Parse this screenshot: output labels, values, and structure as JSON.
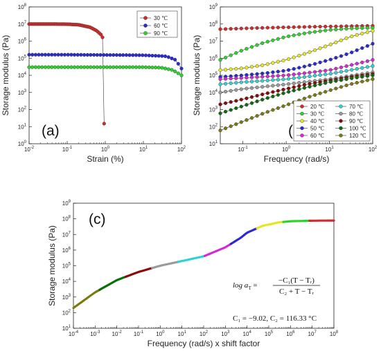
{
  "chart_data": [
    {
      "id": "a",
      "type": "line",
      "panel_label": "(a)",
      "xlabel": "Strain (%)",
      "ylabel": "Storage modulus (Pa)",
      "xscale": "log",
      "yscale": "log",
      "xlim": [
        0.01,
        100
      ],
      "ylim": [
        1,
        100000000
      ],
      "x_ticks": [
        "10-2",
        "10-1",
        "100",
        "101",
        "102"
      ],
      "y_ticks": [
        "100",
        "101",
        "102",
        "103",
        "104",
        "105",
        "106",
        "107",
        "108"
      ],
      "legend_position": "top-right",
      "series": [
        {
          "name": "30 ℃",
          "color": "#d42a2a",
          "marker": "circle",
          "points": [
            [
              0.01,
              10000000.0
            ],
            [
              0.03,
              10000000.0
            ],
            [
              0.1,
              9800000.0
            ],
            [
              0.2,
              9000000.0
            ],
            [
              0.4,
              6500000.0
            ],
            [
              0.6,
              4000000.0
            ],
            [
              0.8,
              2200000.0
            ],
            [
              0.9,
              1200000.0
            ],
            [
              0.92,
              400000.0
            ],
            [
              0.93,
              15
            ]
          ]
        },
        {
          "name": "60 ℃",
          "color": "#2a2ad4",
          "marker": "circle",
          "points": [
            [
              0.01,
              160000.0
            ],
            [
              0.1,
              160000.0
            ],
            [
              1,
              155000.0
            ],
            [
              10,
              150000.0
            ],
            [
              40,
              130000.0
            ],
            [
              70,
              80000.0
            ],
            [
              100,
              25000.0
            ]
          ]
        },
        {
          "name": "90 ℃",
          "color": "#2ad42a",
          "marker": "circle",
          "points": [
            [
              0.01,
              30000.0
            ],
            [
              0.1,
              30000.0
            ],
            [
              1,
              30000.0
            ],
            [
              10,
              30000.0
            ],
            [
              30,
              28000.0
            ],
            [
              60,
              20000.0
            ],
            [
              100,
              10000.0
            ]
          ]
        }
      ]
    },
    {
      "id": "b",
      "type": "line",
      "panel_label": "(b)",
      "xlabel": "Frequency (rad/s)",
      "ylabel": "Storage modulus (Pa)",
      "xscale": "log",
      "yscale": "log",
      "xlim": [
        0.03,
        100
      ],
      "ylim": [
        10,
        1000000000
      ],
      "x_ticks": [
        "10-1",
        "100",
        "101",
        "102"
      ],
      "y_ticks": [
        "101",
        "102",
        "103",
        "104",
        "105",
        "106",
        "107",
        "108",
        "109"
      ],
      "legend_position": "bottom-right",
      "series": [
        {
          "name": "20 ℃",
          "color": "#d42a2a",
          "points": [
            [
              0.03,
              50000000.0
            ],
            [
              0.3,
              60000000.0
            ],
            [
              3,
              68000000.0
            ],
            [
              30,
              75000000.0
            ],
            [
              100,
              78000000.0
            ]
          ]
        },
        {
          "name": "30 ℃",
          "color": "#2ad42a",
          "points": [
            [
              0.03,
              800000.0
            ],
            [
              0.1,
              3000000.0
            ],
            [
              0.3,
              8000000.0
            ],
            [
              1,
              18000000.0
            ],
            [
              3,
              30000000.0
            ],
            [
              10,
              45000000.0
            ],
            [
              30,
              55000000.0
            ],
            [
              100,
              60000000.0
            ]
          ]
        },
        {
          "name": "40 ℃",
          "color": "#e6e620",
          "points": [
            [
              0.03,
              200000.0
            ],
            [
              0.1,
              260000.0
            ],
            [
              0.3,
              400000.0
            ],
            [
              1,
              800000.0
            ],
            [
              3,
              2000000.0
            ],
            [
              10,
              6000000.0
            ],
            [
              30,
              18000000.0
            ],
            [
              100,
              40000000.0
            ]
          ]
        },
        {
          "name": "50 ℃",
          "color": "#2a2ad4",
          "points": [
            [
              0.03,
              80000.0
            ],
            [
              0.1,
              100000.0
            ],
            [
              0.3,
              130000.0
            ],
            [
              1,
              190000.0
            ],
            [
              3,
              350000.0
            ],
            [
              10,
              800000.0
            ],
            [
              30,
              2000000.0
            ],
            [
              100,
              7000000.0
            ]
          ]
        },
        {
          "name": "60 ℃",
          "color": "#d42ad4",
          "points": [
            [
              0.03,
              60000.0
            ],
            [
              0.1,
              70000.0
            ],
            [
              1,
              100000.0
            ],
            [
              10,
              200000.0
            ],
            [
              100,
              800000.0
            ]
          ]
        },
        {
          "name": "70 ℃",
          "color": "#2ad4d4",
          "points": [
            [
              0.03,
              30000.0
            ],
            [
              0.1,
              40000.0
            ],
            [
              1,
              60000.0
            ],
            [
              10,
              120000.0
            ],
            [
              100,
              350000.0
            ]
          ]
        },
        {
          "name": "80 ℃",
          "color": "#9a9a9a",
          "points": [
            [
              0.03,
              10000.0
            ],
            [
              0.1,
              16000.0
            ],
            [
              1,
              30000.0
            ],
            [
              10,
              60000.0
            ],
            [
              100,
              150000.0
            ]
          ]
        },
        {
          "name": "90 ℃",
          "color": "#8b0a0a",
          "points": [
            [
              0.03,
              2000.0
            ],
            [
              0.1,
              4000.0
            ],
            [
              0.3,
              8000.0
            ],
            [
              1,
              16000.0
            ],
            [
              3,
              30000.0
            ],
            [
              10,
              50000.0
            ],
            [
              30,
              80000.0
            ],
            [
              100,
              120000.0
            ]
          ]
        },
        {
          "name": "100 ℃",
          "color": "#0a6e0a",
          "points": [
            [
              0.03,
              600.0
            ],
            [
              0.1,
              1600.0
            ],
            [
              0.3,
              4000.0
            ],
            [
              1,
              10000.0
            ],
            [
              3,
              20000.0
            ],
            [
              10,
              40000.0
            ],
            [
              30,
              65000.0
            ],
            [
              100,
              100000.0
            ]
          ]
        },
        {
          "name": "120 ℃",
          "color": "#7a7a10",
          "points": [
            [
              0.03,
              60
            ],
            [
              0.1,
              200.0
            ],
            [
              0.3,
              600.0
            ],
            [
              1,
              1800.0
            ],
            [
              3,
              5000.0
            ],
            [
              10,
              13000.0
            ],
            [
              30,
              30000.0
            ],
            [
              100,
              60000.0
            ]
          ]
        }
      ]
    },
    {
      "id": "c",
      "type": "line",
      "panel_label": "(c)",
      "xlabel": "Frequency (rad/s) x shift factor",
      "ylabel": "Storage modulus (Pa)",
      "xscale": "log",
      "yscale": "log",
      "xlim": [
        0.0001,
        100000000
      ],
      "ylim": [
        10,
        1000000000
      ],
      "x_ticks": [
        "10-4",
        "10-3",
        "10-2",
        "10-1",
        "100",
        "101",
        "102",
        "103",
        "104",
        "105",
        "106",
        "107",
        "108"
      ],
      "y_ticks": [
        "101",
        "102",
        "103",
        "104",
        "105",
        "106",
        "107",
        "108",
        "109"
      ],
      "master_curve_colors": [
        "#7a7a10",
        "#0a6e0a",
        "#8b0a0a",
        "#9a9a9a",
        "#2ad4d4",
        "#d42ad4",
        "#2a2ad4",
        "#e6e620",
        "#2ad42a",
        "#d42a2a"
      ],
      "master_curve_points": [
        [
          0.0001,
          200
        ],
        [
          0.001,
          2000
        ],
        [
          0.01,
          12000.0
        ],
        [
          0.1,
          40000.0
        ],
        [
          1,
          100000.0
        ],
        [
          10,
          200000.0
        ],
        [
          100,
          400000.0
        ],
        [
          1000,
          1500000.0
        ],
        [
          5000,
          6000000.0
        ],
        [
          10000,
          13000000.0
        ],
        [
          50000,
          35000000.0
        ],
        [
          300000,
          60000000.0
        ],
        [
          1000000,
          70000000.0
        ],
        [
          10000000,
          76000000.0
        ],
        [
          100000000,
          78000000.0
        ]
      ],
      "equation": {
        "line1_prefix": "log a",
        "line1_sub": "T",
        "numerator": "−C₁(T − Tᵣ)",
        "denominator": "C₂ + T − Tᵣ",
        "constants": "C₁ = −9.02, C₂ = 116.33 °C"
      }
    }
  ]
}
